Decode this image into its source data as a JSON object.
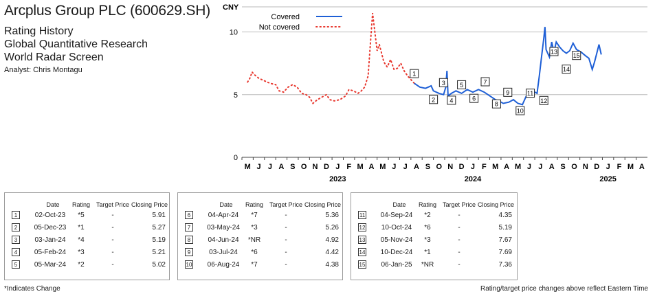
{
  "header": {
    "company": "Arcplus Group PLC (600629.SH)",
    "line1": "Rating History",
    "line2": "Global Quantitative Research",
    "line3": "World Radar Screen",
    "analyst": "Analyst: Chris Montagu"
  },
  "chart_data": {
    "type": "line",
    "ylabel": "CNY",
    "yticks": [
      0,
      5,
      10
    ],
    "ylim": [
      0,
      12
    ],
    "grid": true,
    "legend_placement": "top-left",
    "month_labels": [
      "M",
      "J",
      "J",
      "A",
      "S",
      "O",
      "N",
      "D",
      "J",
      "F",
      "M",
      "A",
      "M",
      "J",
      "J",
      "A",
      "S",
      "O",
      "N",
      "D",
      "J",
      "F",
      "M",
      "A",
      "M",
      "J",
      "J",
      "A",
      "S",
      "O",
      "N",
      "D",
      "J",
      "F",
      "M",
      "A"
    ],
    "year_labels": [
      {
        "label": "2023",
        "month_index": 8
      },
      {
        "label": "2024",
        "month_index": 20
      },
      {
        "label": "2025",
        "month_index": 32
      }
    ],
    "series": [
      {
        "name": "Not covered",
        "style": "dotted",
        "color": "#e8382f",
        "points": [
          [
            0,
            6.0
          ],
          [
            0.2,
            6.3
          ],
          [
            0.4,
            6.8
          ],
          [
            0.6,
            6.6
          ],
          [
            1,
            6.3
          ],
          [
            1.5,
            6.1
          ],
          [
            2,
            5.9
          ],
          [
            2.5,
            5.8
          ],
          [
            2.8,
            5.3
          ],
          [
            3.2,
            5.2
          ],
          [
            3.6,
            5.6
          ],
          [
            4,
            5.8
          ],
          [
            4.4,
            5.6
          ],
          [
            4.8,
            5.1
          ],
          [
            5.2,
            5.0
          ],
          [
            5.5,
            4.8
          ],
          [
            5.8,
            4.3
          ],
          [
            6.2,
            4.6
          ],
          [
            6.6,
            4.8
          ],
          [
            7,
            5.0
          ],
          [
            7.3,
            4.6
          ],
          [
            7.7,
            4.5
          ],
          [
            8.2,
            4.6
          ],
          [
            8.7,
            4.9
          ],
          [
            9.0,
            5.4
          ],
          [
            9.4,
            5.3
          ],
          [
            9.8,
            5.1
          ],
          [
            10.1,
            5.3
          ],
          [
            10.4,
            5.6
          ],
          [
            10.7,
            6.5
          ],
          [
            10.9,
            9.0
          ],
          [
            11.1,
            11.5
          ],
          [
            11.3,
            10.0
          ],
          [
            11.5,
            8.5
          ],
          [
            11.7,
            9.0
          ],
          [
            11.9,
            8.3
          ],
          [
            12.1,
            7.6
          ],
          [
            12.4,
            7.2
          ],
          [
            12.7,
            7.8
          ],
          [
            13.0,
            7.0
          ],
          [
            13.3,
            7.1
          ],
          [
            13.6,
            7.5
          ],
          [
            13.9,
            6.9
          ],
          [
            14.2,
            6.5
          ],
          [
            14.5,
            6.2
          ],
          [
            14.8,
            5.9
          ]
        ]
      },
      {
        "name": "Covered",
        "style": "solid",
        "color": "#1e5fd6",
        "points": [
          [
            14.8,
            5.9
          ],
          [
            15.3,
            5.6
          ],
          [
            15.8,
            5.5
          ],
          [
            16.3,
            5.7
          ],
          [
            16.5,
            5.3
          ],
          [
            17.0,
            5.1
          ],
          [
            17.4,
            5.0
          ],
          [
            17.6,
            5.6
          ],
          [
            17.7,
            6.9
          ],
          [
            17.8,
            4.9
          ],
          [
            18.1,
            5.1
          ],
          [
            18.5,
            5.3
          ],
          [
            19.0,
            5.1
          ],
          [
            19.5,
            5.4
          ],
          [
            20.0,
            5.2
          ],
          [
            20.5,
            5.4
          ],
          [
            21.0,
            5.2
          ],
          [
            21.5,
            4.9
          ],
          [
            22.0,
            4.6
          ],
          [
            22.3,
            4.5
          ],
          [
            22.7,
            4.3
          ],
          [
            23.2,
            4.4
          ],
          [
            23.6,
            4.6
          ],
          [
            24.0,
            4.3
          ],
          [
            24.4,
            4.2
          ],
          [
            24.8,
            5.0
          ],
          [
            25.3,
            5.3
          ],
          [
            25.7,
            5.1
          ],
          [
            25.9,
            6.5
          ],
          [
            26.1,
            8.0
          ],
          [
            26.3,
            9.5
          ],
          [
            26.4,
            10.4
          ],
          [
            26.5,
            8.6
          ],
          [
            26.8,
            8.0
          ],
          [
            27.0,
            9.2
          ],
          [
            27.2,
            8.4
          ],
          [
            27.4,
            9.2
          ],
          [
            27.7,
            8.8
          ],
          [
            28.0,
            8.5
          ],
          [
            28.3,
            8.3
          ],
          [
            28.6,
            8.5
          ],
          [
            28.9,
            9.1
          ],
          [
            29.2,
            8.6
          ],
          [
            29.6,
            8.4
          ],
          [
            30.0,
            8.1
          ],
          [
            30.3,
            7.9
          ],
          [
            30.6,
            7.0
          ],
          [
            30.8,
            7.6
          ],
          [
            31.0,
            8.3
          ],
          [
            31.2,
            9.0
          ],
          [
            31.4,
            8.2
          ]
        ]
      }
    ],
    "markers": [
      {
        "n": 1,
        "x": 14.8,
        "y": 5.91
      },
      {
        "n": 2,
        "x": 16.5,
        "y": 5.27
      },
      {
        "n": 3,
        "x": 17.4,
        "y": 5.19
      },
      {
        "n": 4,
        "x": 18.1,
        "y": 5.21
      },
      {
        "n": 5,
        "x": 19.0,
        "y": 5.02
      },
      {
        "n": 6,
        "x": 20.1,
        "y": 5.36
      },
      {
        "n": 7,
        "x": 21.1,
        "y": 5.26
      },
      {
        "n": 8,
        "x": 22.1,
        "y": 4.92
      },
      {
        "n": 9,
        "x": 23.1,
        "y": 4.42
      },
      {
        "n": 10,
        "x": 24.2,
        "y": 4.38
      },
      {
        "n": 11,
        "x": 25.1,
        "y": 4.35
      },
      {
        "n": 12,
        "x": 26.3,
        "y": 5.19
      },
      {
        "n": 13,
        "x": 27.2,
        "y": 7.67
      },
      {
        "n": 14,
        "x": 28.3,
        "y": 7.69
      },
      {
        "n": 15,
        "x": 29.2,
        "y": 7.36
      }
    ]
  },
  "table_headers": [
    "Date",
    "Rating",
    "Target Price",
    "Closing Price"
  ],
  "tables": [
    [
      {
        "n": "1",
        "date": "02-Oct-23",
        "rating": "*5",
        "target": "-",
        "close": "5.91"
      },
      {
        "n": "2",
        "date": "05-Dec-23",
        "rating": "*1",
        "target": "-",
        "close": "5.27"
      },
      {
        "n": "3",
        "date": "03-Jan-24",
        "rating": "*4",
        "target": "-",
        "close": "5.19"
      },
      {
        "n": "4",
        "date": "05-Feb-24",
        "rating": "*3",
        "target": "-",
        "close": "5.21"
      },
      {
        "n": "5",
        "date": "05-Mar-24",
        "rating": "*2",
        "target": "-",
        "close": "5.02"
      }
    ],
    [
      {
        "n": "6",
        "date": "04-Apr-24",
        "rating": "*7",
        "target": "-",
        "close": "5.36"
      },
      {
        "n": "7",
        "date": "03-May-24",
        "rating": "*3",
        "target": "-",
        "close": "5.26"
      },
      {
        "n": "8",
        "date": "04-Jun-24",
        "rating": "*NR",
        "target": "-",
        "close": "4.92"
      },
      {
        "n": "9",
        "date": "03-Jul-24",
        "rating": "*6",
        "target": "-",
        "close": "4.42"
      },
      {
        "n": "10",
        "date": "06-Aug-24",
        "rating": "*7",
        "target": "-",
        "close": "4.38"
      }
    ],
    [
      {
        "n": "11",
        "date": "04-Sep-24",
        "rating": "*2",
        "target": "-",
        "close": "4.35"
      },
      {
        "n": "12",
        "date": "10-Oct-24",
        "rating": "*6",
        "target": "-",
        "close": "5.19"
      },
      {
        "n": "13",
        "date": "05-Nov-24",
        "rating": "*3",
        "target": "-",
        "close": "7.67"
      },
      {
        "n": "14",
        "date": "10-Dec-24",
        "rating": "*1",
        "target": "-",
        "close": "7.69"
      },
      {
        "n": "15",
        "date": "06-Jan-25",
        "rating": "*NR",
        "target": "-",
        "close": "7.36"
      }
    ]
  ],
  "footnote": "*Indicates Change",
  "disclaimer": "Rating/target price changes above reflect Eastern Time"
}
